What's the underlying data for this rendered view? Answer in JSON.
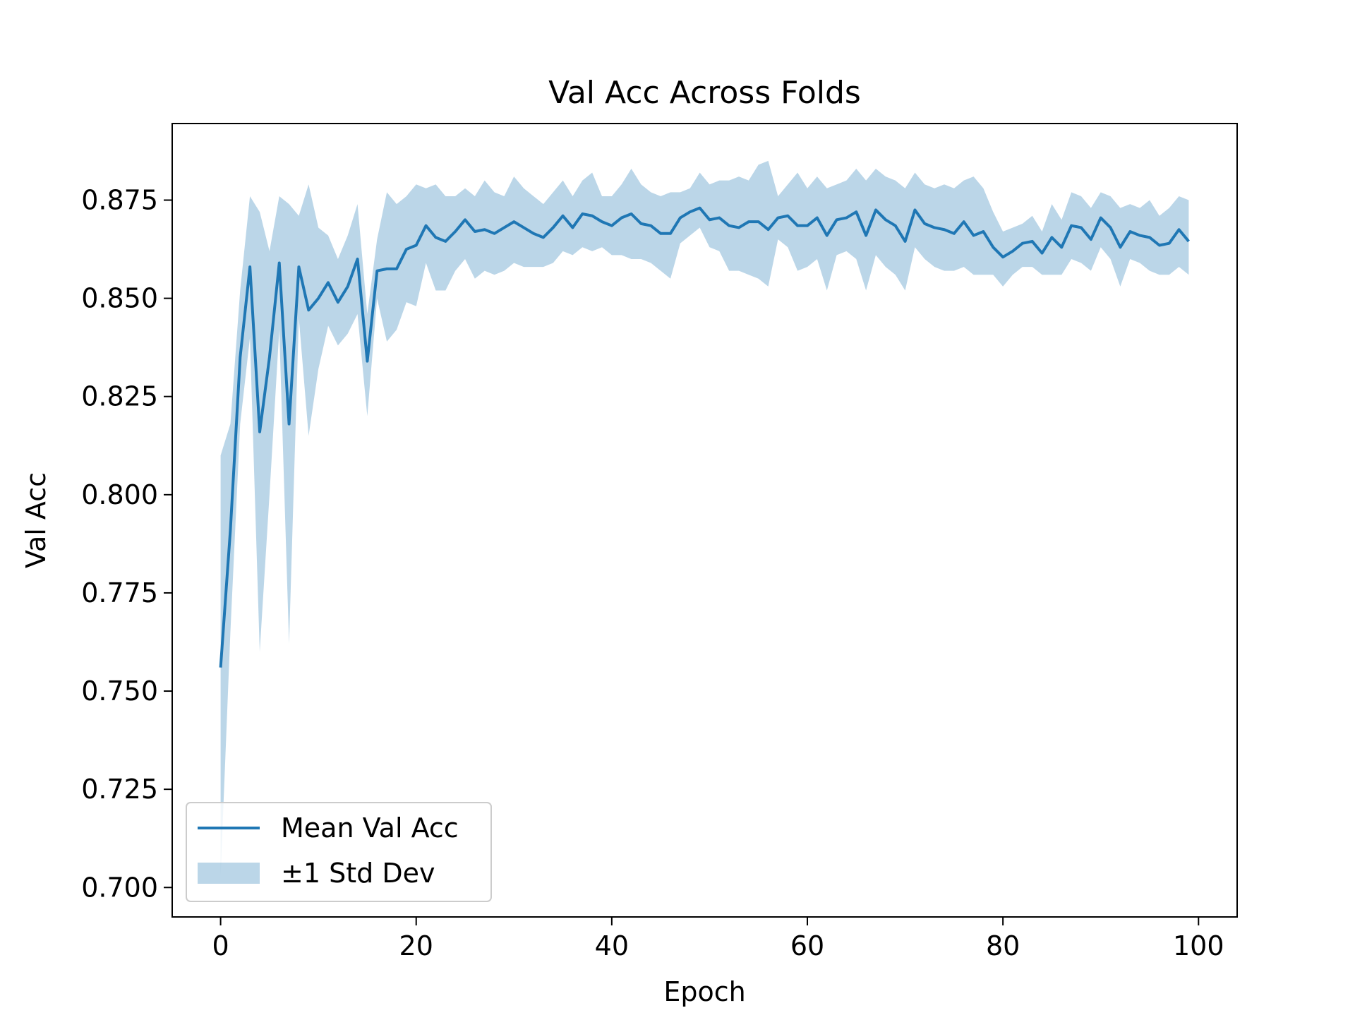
{
  "chart_data": {
    "type": "line",
    "title": "Val Acc Across Folds",
    "xlabel": "Epoch",
    "ylabel": "Val Acc",
    "xlim": [
      -4.95,
      103.95
    ],
    "ylim": [
      0.6925,
      0.8945
    ],
    "xticks": [
      0,
      20,
      40,
      60,
      80,
      100
    ],
    "yticks": [
      0.7,
      0.725,
      0.75,
      0.775,
      0.8,
      0.825,
      0.85,
      0.875
    ],
    "grid": false,
    "legend_position": "lower-left",
    "x": [
      0,
      1,
      2,
      3,
      4,
      5,
      6,
      7,
      8,
      9,
      10,
      11,
      12,
      13,
      14,
      15,
      16,
      17,
      18,
      19,
      20,
      21,
      22,
      23,
      24,
      25,
      26,
      27,
      28,
      29,
      30,
      31,
      32,
      33,
      34,
      35,
      36,
      37,
      38,
      39,
      40,
      41,
      42,
      43,
      44,
      45,
      46,
      47,
      48,
      49,
      50,
      51,
      52,
      53,
      54,
      55,
      56,
      57,
      58,
      59,
      60,
      61,
      62,
      63,
      64,
      65,
      66,
      67,
      68,
      69,
      70,
      71,
      72,
      73,
      74,
      75,
      76,
      77,
      78,
      79,
      80,
      81,
      82,
      83,
      84,
      85,
      86,
      87,
      88,
      89,
      90,
      91,
      92,
      93,
      94,
      95,
      96,
      97,
      98,
      99
    ],
    "series": [
      {
        "name": "Mean Val Acc",
        "color": "#1f77b4",
        "values": [
          0.756,
          0.791,
          0.835,
          0.858,
          0.816,
          0.835,
          0.859,
          0.818,
          0.858,
          0.847,
          0.85,
          0.854,
          0.849,
          0.853,
          0.86,
          0.834,
          0.857,
          0.8575,
          0.8575,
          0.8625,
          0.8635,
          0.8685,
          0.8655,
          0.8645,
          0.867,
          0.87,
          0.867,
          0.8675,
          0.8665,
          0.868,
          0.8695,
          0.868,
          0.8665,
          0.8655,
          0.868,
          0.871,
          0.868,
          0.8715,
          0.871,
          0.8695,
          0.8685,
          0.8705,
          0.8715,
          0.869,
          0.8685,
          0.8665,
          0.8665,
          0.8705,
          0.872,
          0.873,
          0.87,
          0.8705,
          0.8685,
          0.868,
          0.8695,
          0.8695,
          0.8675,
          0.8705,
          0.871,
          0.8685,
          0.8685,
          0.8705,
          0.866,
          0.87,
          0.8705,
          0.872,
          0.866,
          0.8725,
          0.87,
          0.8685,
          0.8645,
          0.8725,
          0.869,
          0.868,
          0.8675,
          0.8665,
          0.8695,
          0.866,
          0.867,
          0.863,
          0.8605,
          0.862,
          0.864,
          0.8645,
          0.8615,
          0.8655,
          0.863,
          0.8685,
          0.868,
          0.865,
          0.8705,
          0.868,
          0.863,
          0.867,
          0.866,
          0.8655,
          0.8635,
          0.864,
          0.8675,
          0.8645
        ],
        "std_lower": [
          0.703,
          0.765,
          0.818,
          0.84,
          0.76,
          0.8,
          0.842,
          0.762,
          0.845,
          0.815,
          0.832,
          0.843,
          0.838,
          0.841,
          0.846,
          0.82,
          0.85,
          0.839,
          0.842,
          0.849,
          0.848,
          0.859,
          0.852,
          0.852,
          0.857,
          0.86,
          0.855,
          0.857,
          0.856,
          0.857,
          0.859,
          0.858,
          0.858,
          0.858,
          0.859,
          0.862,
          0.861,
          0.863,
          0.862,
          0.863,
          0.861,
          0.861,
          0.86,
          0.86,
          0.859,
          0.857,
          0.855,
          0.864,
          0.866,
          0.868,
          0.863,
          0.862,
          0.857,
          0.857,
          0.856,
          0.855,
          0.853,
          0.865,
          0.863,
          0.857,
          0.858,
          0.86,
          0.852,
          0.861,
          0.862,
          0.86,
          0.852,
          0.861,
          0.858,
          0.856,
          0.852,
          0.863,
          0.86,
          0.858,
          0.857,
          0.857,
          0.858,
          0.856,
          0.856,
          0.856,
          0.853,
          0.856,
          0.858,
          0.858,
          0.856,
          0.856,
          0.856,
          0.86,
          0.859,
          0.857,
          0.863,
          0.86,
          0.853,
          0.86,
          0.859,
          0.857,
          0.856,
          0.856,
          0.858,
          0.856
        ],
        "std_upper": [
          0.81,
          0.818,
          0.852,
          0.876,
          0.872,
          0.862,
          0.876,
          0.874,
          0.871,
          0.879,
          0.868,
          0.866,
          0.86,
          0.866,
          0.874,
          0.846,
          0.865,
          0.877,
          0.874,
          0.876,
          0.879,
          0.878,
          0.879,
          0.876,
          0.876,
          0.878,
          0.876,
          0.88,
          0.877,
          0.876,
          0.881,
          0.878,
          0.876,
          0.874,
          0.877,
          0.88,
          0.876,
          0.88,
          0.882,
          0.876,
          0.876,
          0.879,
          0.883,
          0.879,
          0.877,
          0.876,
          0.877,
          0.877,
          0.878,
          0.882,
          0.879,
          0.88,
          0.88,
          0.881,
          0.88,
          0.884,
          0.885,
          0.876,
          0.879,
          0.882,
          0.878,
          0.881,
          0.878,
          0.879,
          0.88,
          0.883,
          0.88,
          0.883,
          0.881,
          0.88,
          0.878,
          0.882,
          0.879,
          0.878,
          0.879,
          0.878,
          0.88,
          0.881,
          0.878,
          0.872,
          0.867,
          0.868,
          0.869,
          0.871,
          0.867,
          0.874,
          0.87,
          0.877,
          0.876,
          0.873,
          0.877,
          0.876,
          0.873,
          0.874,
          0.873,
          0.875,
          0.871,
          0.873,
          0.876,
          0.875
        ]
      }
    ],
    "legend": [
      {
        "label": "Mean Val Acc",
        "kind": "line",
        "color": "#1f77b4"
      },
      {
        "label": "±1 Std Dev",
        "kind": "band",
        "color": "#1f77b4"
      }
    ]
  }
}
